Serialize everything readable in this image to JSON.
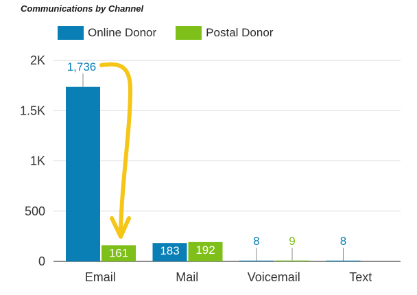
{
  "chart_data": {
    "type": "bar",
    "title": "Communications by Channel",
    "categories": [
      "Email",
      "Mail",
      "Voicemail",
      "Text"
    ],
    "series": [
      {
        "name": "Online Donor",
        "color": "#0a7fb5",
        "values": [
          1736,
          183,
          8,
          8
        ]
      },
      {
        "name": "Postal Donor",
        "color": "#7fbf1a",
        "values": [
          161,
          192,
          9,
          null
        ]
      }
    ],
    "data_labels": [
      [
        "1,736",
        "183",
        "8",
        "8"
      ],
      [
        "161",
        "192",
        "9",
        ""
      ]
    ],
    "ylim": [
      0,
      2000
    ],
    "yticks": [
      0,
      500,
      1000,
      1500,
      2000
    ],
    "ytick_labels": [
      "0",
      "500",
      "1K",
      "1.5K",
      "2K"
    ],
    "grid": true,
    "legend_position": "top-left",
    "annotation": {
      "type": "arrow",
      "color": "#f5c518",
      "from": "Online Donor Email label",
      "to": "Postal Donor Email bar"
    }
  }
}
